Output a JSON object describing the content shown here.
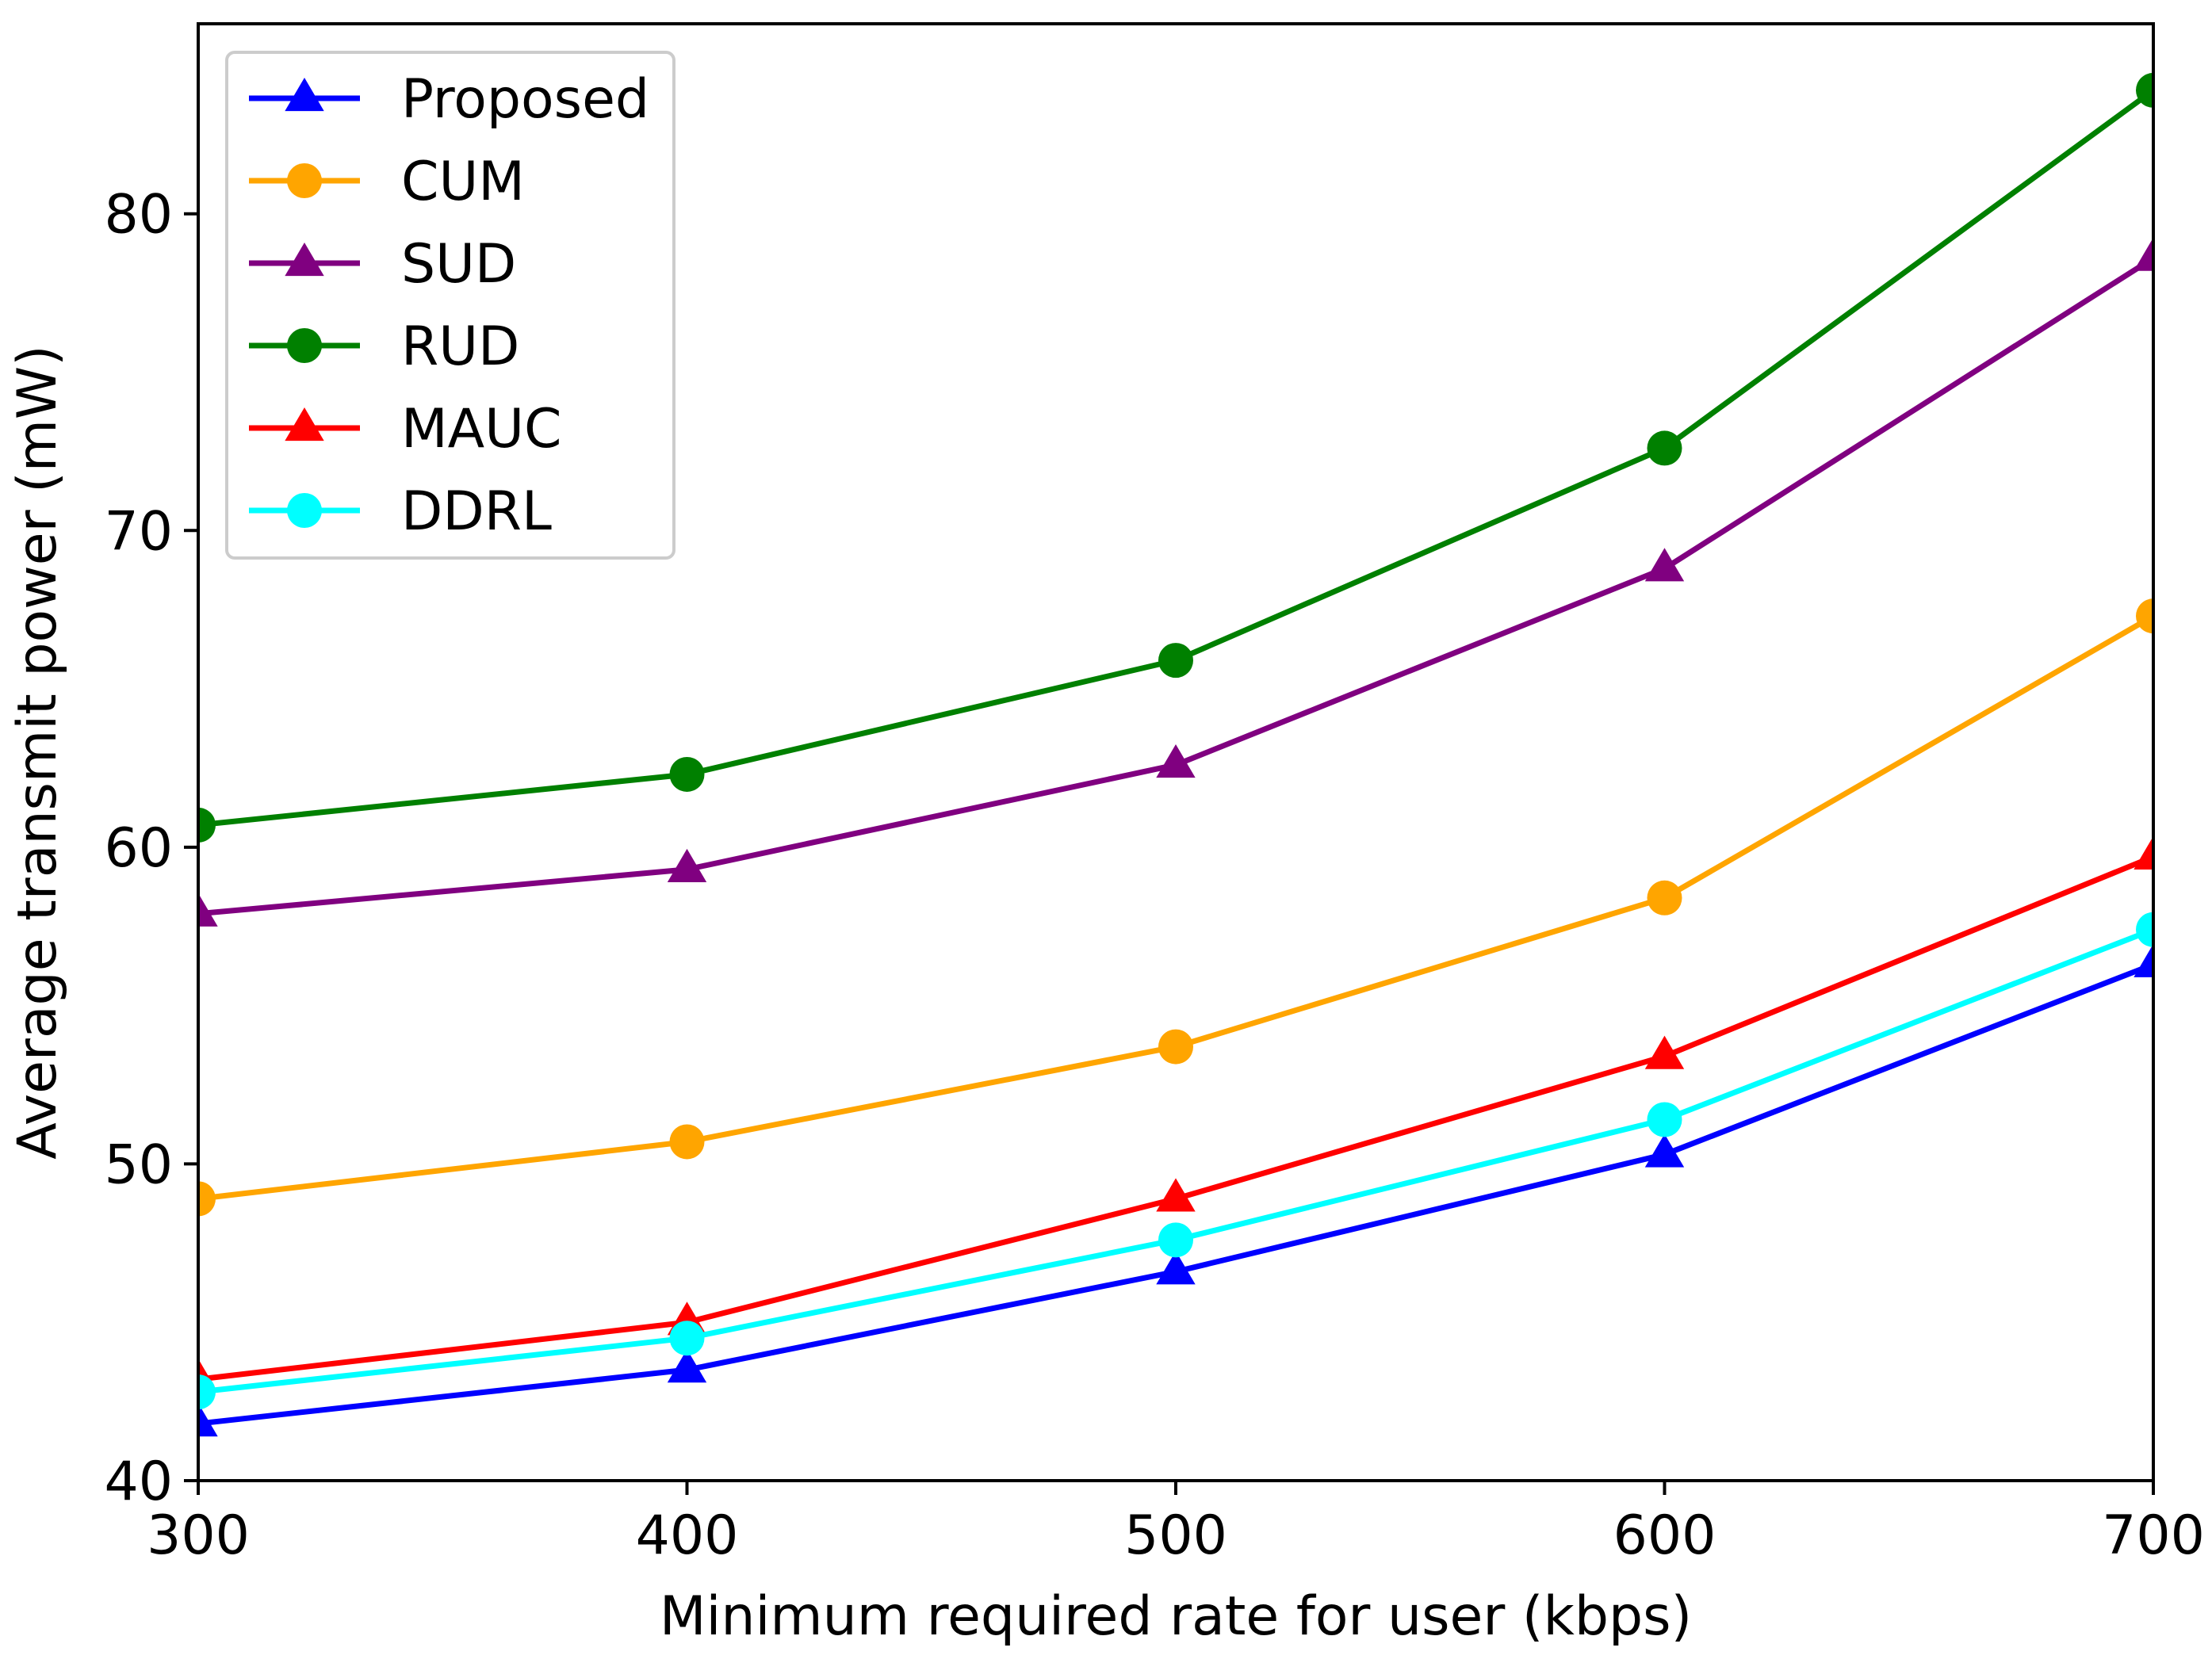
{
  "chart_data": {
    "type": "line",
    "title": "",
    "xlabel": "Minimum required rate for user (kbps)",
    "ylabel": "Average transmit power (mW)",
    "x": [
      300,
      400,
      500,
      600,
      700
    ],
    "xlim": [
      300,
      700
    ],
    "ylim": [
      40,
      86
    ],
    "xticks": [
      300,
      400,
      500,
      600,
      700
    ],
    "yticks": [
      40,
      50,
      60,
      70,
      80
    ],
    "grid": false,
    "legend_position": "upper-left",
    "series": [
      {
        "name": "Proposed",
        "color": "#0000ff",
        "marker": "triangle",
        "values": [
          41.8,
          43.5,
          46.6,
          50.3,
          56.3
        ]
      },
      {
        "name": "CUM",
        "color": "#ffa500",
        "marker": "circle",
        "values": [
          48.9,
          50.7,
          53.7,
          58.4,
          67.3
        ]
      },
      {
        "name": "SUD",
        "color": "#800080",
        "marker": "triangle",
        "values": [
          57.9,
          59.3,
          62.6,
          68.8,
          78.6
        ]
      },
      {
        "name": "RUD",
        "color": "#008000",
        "marker": "circle",
        "values": [
          60.7,
          62.3,
          65.9,
          72.6,
          83.9
        ]
      },
      {
        "name": "MAUC",
        "color": "#ff0000",
        "marker": "triangle",
        "values": [
          43.2,
          45.0,
          48.9,
          53.4,
          59.7
        ]
      },
      {
        "name": "DDRL",
        "color": "#00ffff",
        "marker": "circle",
        "values": [
          42.8,
          44.5,
          47.6,
          51.4,
          57.4
        ]
      }
    ]
  }
}
